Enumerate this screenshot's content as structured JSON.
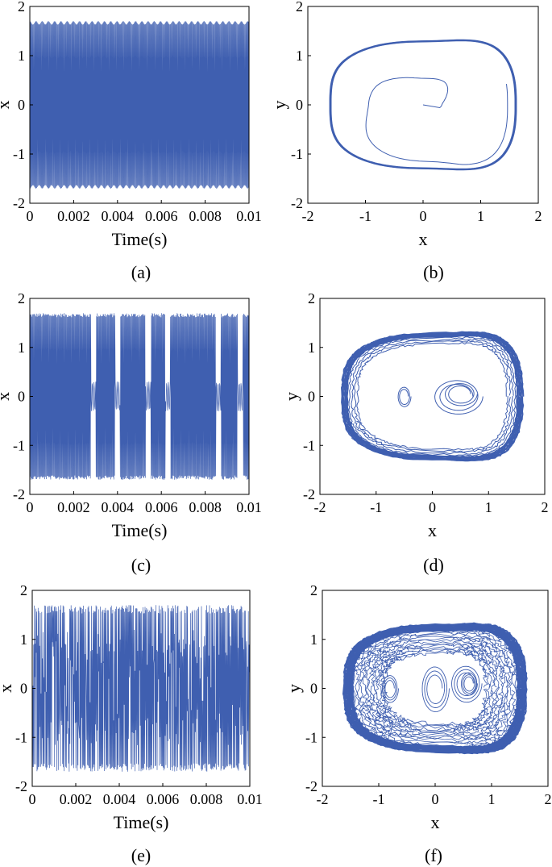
{
  "chart_data": [
    {
      "id": "a",
      "type": "line",
      "caption": "(a)",
      "xlabel": "Time(s)",
      "ylabel": "x",
      "xlim": [
        0,
        0.01
      ],
      "ylim": [
        -2,
        2
      ],
      "xticks": [
        "0",
        "0.002",
        "0.004",
        "0.006",
        "0.008",
        "0.01"
      ],
      "yticks": [
        "-2",
        "-1",
        "0",
        "1",
        "2"
      ],
      "kind": "time",
      "regime": "periodic",
      "amplitude": 1.7,
      "color": "#3f5fb0"
    },
    {
      "id": "b",
      "type": "line",
      "caption": "(b)",
      "xlabel": "x",
      "ylabel": "y",
      "xlim": [
        -2,
        2
      ],
      "ylim": [
        -2,
        2
      ],
      "xticks": [
        "-2",
        "-1",
        "0",
        "1",
        "2"
      ],
      "yticks": [
        "-2",
        "-1",
        "0",
        "1",
        "2"
      ],
      "kind": "phase",
      "regime": "periodic",
      "color": "#3f5fb0"
    },
    {
      "id": "c",
      "type": "line",
      "caption": "(c)",
      "xlabel": "Time(s)",
      "ylabel": "x",
      "xlim": [
        0,
        0.01
      ],
      "ylim": [
        -2,
        2
      ],
      "xticks": [
        "0",
        "0.002",
        "0.004",
        "0.006",
        "0.008",
        "0.01"
      ],
      "yticks": [
        "-2",
        "-1",
        "0",
        "1",
        "2"
      ],
      "kind": "time",
      "regime": "intermittent",
      "amplitude": 1.7,
      "gaps": [
        0.0029,
        0.004,
        0.0054,
        0.0063,
        0.0086,
        0.0096
      ],
      "color": "#3f5fb0"
    },
    {
      "id": "d",
      "type": "line",
      "caption": "(d)",
      "xlabel": "x",
      "ylabel": "y",
      "xlim": [
        -2,
        2
      ],
      "ylim": [
        -2,
        2
      ],
      "xticks": [
        "-2",
        "-1",
        "0",
        "1",
        "2"
      ],
      "yticks": [
        "-2",
        "-1",
        "0",
        "1",
        "2"
      ],
      "kind": "phase",
      "regime": "intermittent",
      "color": "#3f5fb0"
    },
    {
      "id": "e",
      "type": "line",
      "caption": "(e)",
      "xlabel": "Time(s)",
      "ylabel": "x",
      "xlim": [
        0,
        0.01
      ],
      "ylim": [
        -2,
        2
      ],
      "xticks": [
        "0",
        "0.002",
        "0.004",
        "0.006",
        "0.008",
        "0.01"
      ],
      "yticks": [
        "-2",
        "-1",
        "0",
        "1",
        "2"
      ],
      "kind": "time",
      "regime": "chaotic",
      "amplitude": 1.7,
      "color": "#3f5fb0"
    },
    {
      "id": "f",
      "type": "line",
      "caption": "(f)",
      "xlabel": "x",
      "ylabel": "y",
      "xlim": [
        -2,
        2
      ],
      "ylim": [
        -2,
        2
      ],
      "xticks": [
        "-2",
        "-1",
        "0",
        "1",
        "2"
      ],
      "yticks": [
        "-2",
        "-1",
        "0",
        "1",
        "2"
      ],
      "kind": "phase",
      "regime": "chaotic",
      "color": "#3f5fb0"
    }
  ]
}
